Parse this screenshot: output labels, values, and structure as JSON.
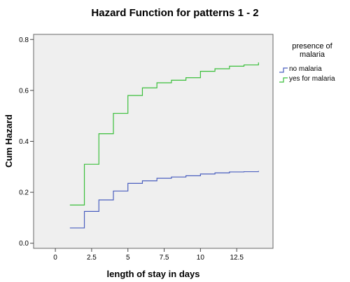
{
  "chart_data": {
    "type": "line",
    "step": true,
    "title": "Hazard Function for patterns 1 - 2",
    "xlabel": "length of stay in days",
    "ylabel": "Cum Hazard",
    "xlim": [
      -1.5,
      15
    ],
    "ylim": [
      -0.02,
      0.82
    ],
    "xticks": [
      0,
      2.5,
      5,
      7.5,
      10,
      12.5
    ],
    "xtick_labels": [
      "0",
      "2.5",
      "5",
      "7.5",
      "10",
      "12.5"
    ],
    "yticks": [
      0.0,
      0.2,
      0.4,
      0.6,
      0.8
    ],
    "ytick_labels": [
      "0.0",
      "0.2",
      "0.4",
      "0.6",
      "0.8"
    ],
    "grid": false,
    "legend": {
      "title": "presence of malaria",
      "title_lines": [
        "presence of",
        "malaria"
      ],
      "placement": "right"
    },
    "series": [
      {
        "name": "no malaria",
        "color": "#4a5fbf",
        "x": [
          1,
          2,
          3,
          4,
          5,
          6,
          7,
          8,
          9,
          10,
          11,
          12,
          13,
          14
        ],
        "values": [
          0.06,
          0.125,
          0.17,
          0.205,
          0.235,
          0.245,
          0.255,
          0.26,
          0.265,
          0.272,
          0.276,
          0.28,
          0.281,
          0.284
        ]
      },
      {
        "name": "yes for malaria",
        "color": "#3bbf3b",
        "x": [
          1,
          2,
          3,
          4,
          5,
          6,
          7,
          8,
          9,
          10,
          11,
          12,
          13,
          14
        ],
        "values": [
          0.15,
          0.31,
          0.43,
          0.51,
          0.58,
          0.61,
          0.63,
          0.64,
          0.65,
          0.675,
          0.685,
          0.695,
          0.7,
          0.71
        ]
      }
    ]
  }
}
